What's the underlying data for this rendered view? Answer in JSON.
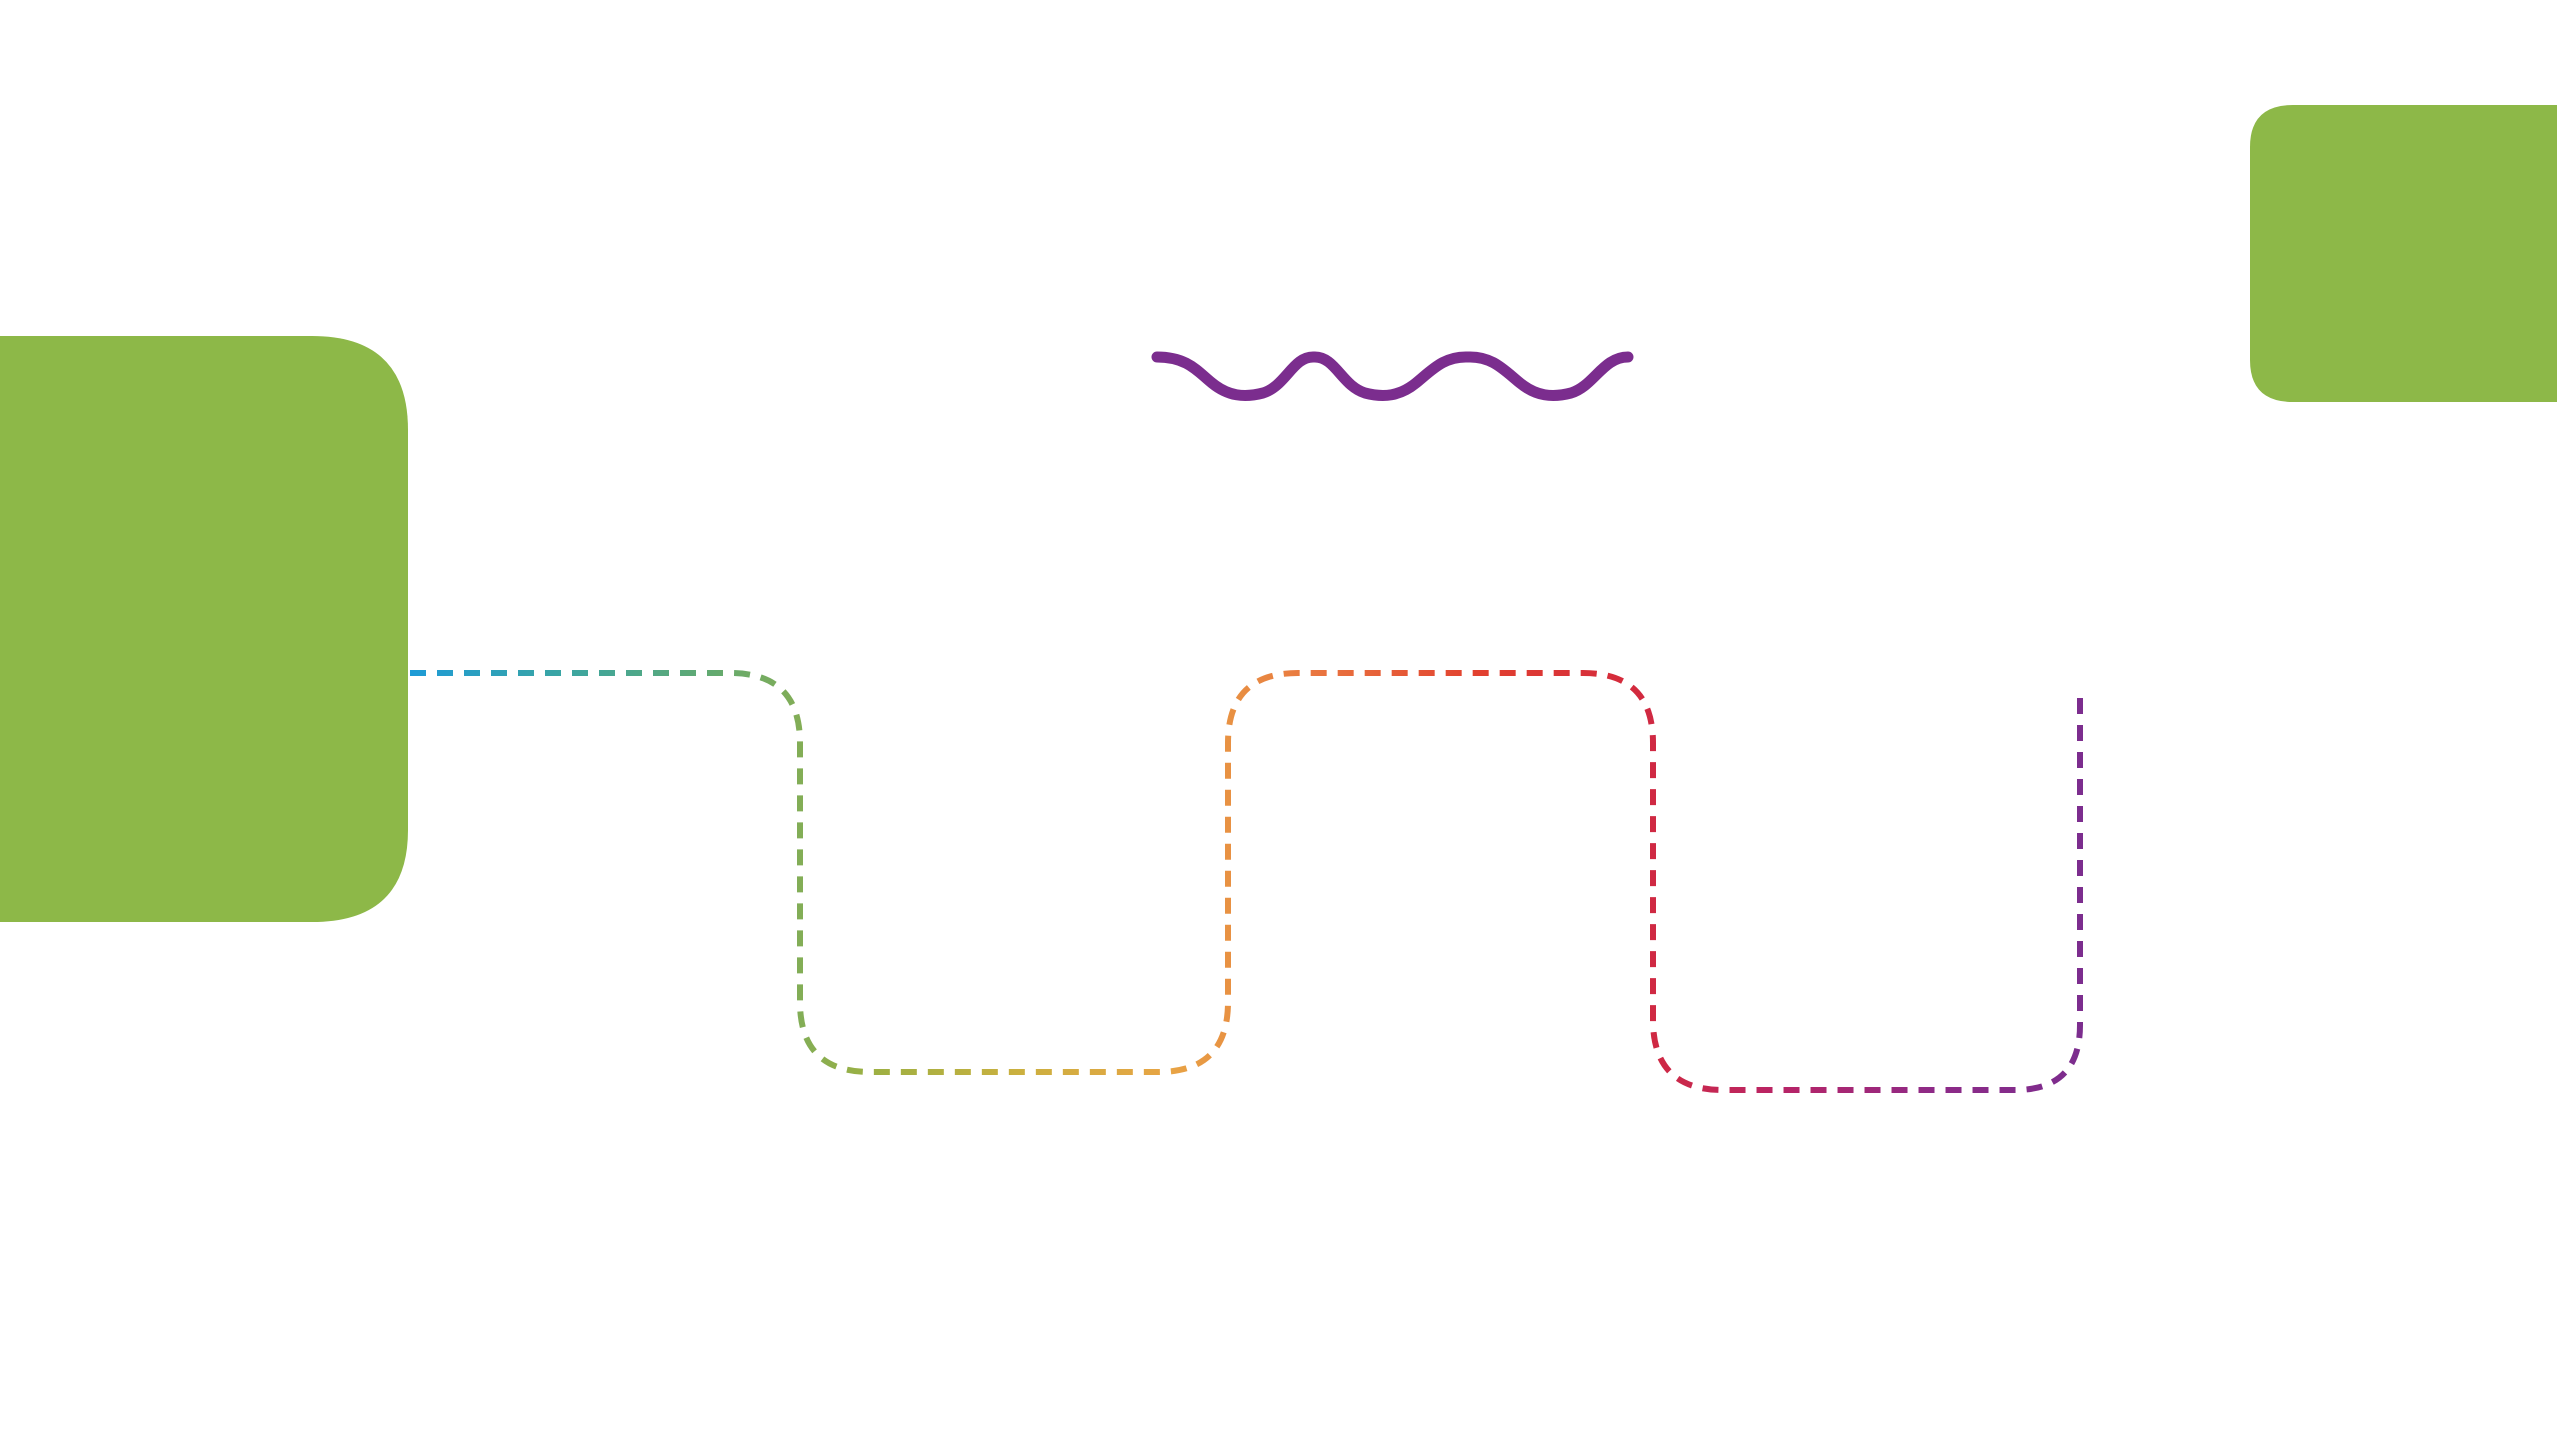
{
  "colors": {
    "background": "#ffffff",
    "shape_fill": "#8db848",
    "wave": "#7b2d8e",
    "path_gradient": [
      "#1e9bd7",
      "#3aa5a3",
      "#63aa6f",
      "#9bb043",
      "#cbb03f",
      "#e8a445",
      "#e9733f",
      "#e2412f",
      "#d42a3c",
      "#b82466",
      "#8e2a87",
      "#7b2d8e"
    ]
  },
  "shapes": {
    "left_block": {
      "kind": "rounded-rectangle",
      "fill_color": "#8db848"
    },
    "top_right_block": {
      "kind": "rounded-rectangle",
      "fill_color": "#8db848"
    }
  },
  "decorations": {
    "wave": {
      "kind": "wavy-line",
      "waves": 3,
      "color": "#7b2d8e"
    }
  },
  "connector": {
    "style": "dashed",
    "shape": "square-wave",
    "segments": [
      "right",
      "down",
      "right",
      "up",
      "right",
      "down",
      "right",
      "up"
    ]
  }
}
